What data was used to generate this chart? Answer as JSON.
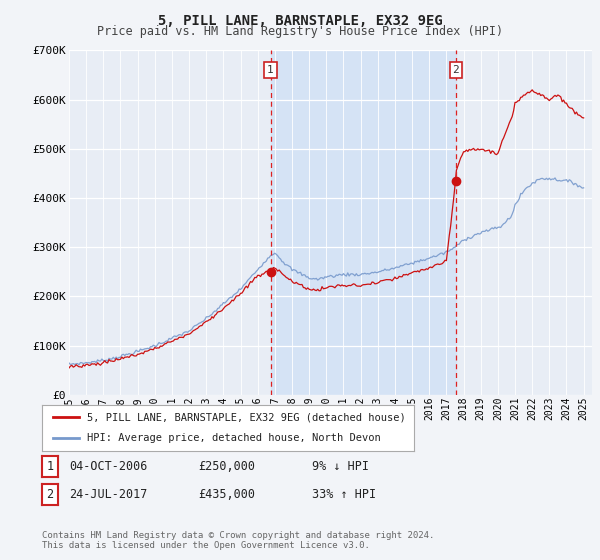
{
  "title": "5, PILL LANE, BARNSTAPLE, EX32 9EG",
  "subtitle": "Price paid vs. HM Land Registry's House Price Index (HPI)",
  "ylim": [
    0,
    700000
  ],
  "xlim_start": 1995.0,
  "xlim_end": 2025.5,
  "background_color": "#f2f4f8",
  "plot_bg_color": "#e8edf5",
  "grid_color": "#d8dde8",
  "red_line_color": "#cc1111",
  "blue_line_color": "#7799cc",
  "vspan_color": "#d5e3f5",
  "marker1_date": 2006.75,
  "marker1_value": 250000,
  "marker2_date": 2017.55,
  "marker2_value": 435000,
  "vline_color": "#dd2222",
  "legend_red_label": "5, PILL LANE, BARNSTAPLE, EX32 9EG (detached house)",
  "legend_blue_label": "HPI: Average price, detached house, North Devon",
  "table_row1": [
    "1",
    "04-OCT-2006",
    "£250,000",
    "9% ↓ HPI"
  ],
  "table_row2": [
    "2",
    "24-JUL-2017",
    "£435,000",
    "33% ↑ HPI"
  ],
  "footnote": "Contains HM Land Registry data © Crown copyright and database right 2024.\nThis data is licensed under the Open Government Licence v3.0.",
  "ytick_labels": [
    "£0",
    "£100K",
    "£200K",
    "£300K",
    "£400K",
    "£500K",
    "£600K",
    "£700K"
  ],
  "ytick_values": [
    0,
    100000,
    200000,
    300000,
    400000,
    500000,
    600000,
    700000
  ]
}
